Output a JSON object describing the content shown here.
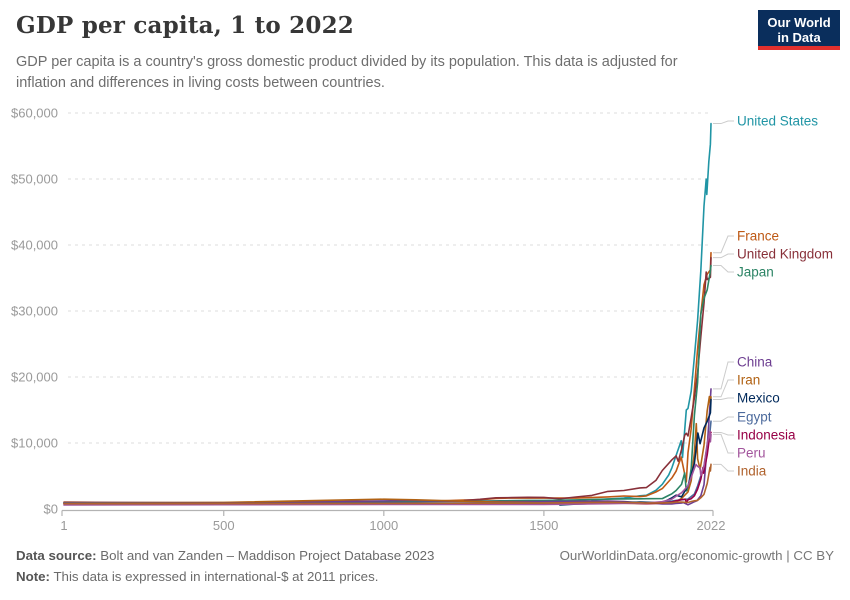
{
  "header": {
    "title": "GDP per capita, 1 to 2022",
    "subtitle": "GDP per capita is a country's gross domestic product divided by its population. This data is adjusted for inflation and differences in living costs between countries."
  },
  "logo": {
    "line1": "Our World",
    "line2": "in Data",
    "bg_color": "#0A2E5C",
    "accent_color": "#E2302D"
  },
  "footer": {
    "source_label": "Data source:",
    "source_text": " Bolt and van Zanden – Maddison Project Database 2023",
    "note_label": "Note:",
    "note_text": " This data is expressed in international-$ at 2011 prices.",
    "link_text": "OurWorldinData.org/economic-growth | CC BY"
  },
  "chart_data": {
    "type": "line",
    "title": "GDP per capita, 1 to 2022",
    "xlabel": "",
    "ylabel": "",
    "unit": "international-$ at 2011 prices",
    "xlim": [
      1,
      2022
    ],
    "ylim": [
      0,
      60000
    ],
    "x_ticks": [
      1,
      500,
      1000,
      1500,
      2022
    ],
    "x_tick_labels": [
      "1",
      "500",
      "1000",
      "1500",
      "2022"
    ],
    "y_ticks": [
      0,
      10000,
      20000,
      30000,
      40000,
      50000,
      60000
    ],
    "y_tick_labels": [
      "$0",
      "$10,000",
      "$20,000",
      "$30,000",
      "$40,000",
      "$50,000",
      "$60,000"
    ],
    "grid": "horizontal-dashed",
    "legend_position": "right-edge-labels",
    "axis_color": "#b3b3b3",
    "grid_color": "#dedede",
    "tick_label_color": "#9a9a9a",
    "connector_color": "#cccccc",
    "series": [
      {
        "name": "United States",
        "color": "#2095A5",
        "label_y": 121,
        "points": [
          [
            1650,
            1370
          ],
          [
            1700,
            1500
          ],
          [
            1750,
            1650
          ],
          [
            1800,
            2000
          ],
          [
            1820,
            2080
          ],
          [
            1850,
            2830
          ],
          [
            1870,
            3740
          ],
          [
            1890,
            5150
          ],
          [
            1900,
            6250
          ],
          [
            1913,
            8100
          ],
          [
            1929,
            10350
          ],
          [
            1933,
            7800
          ],
          [
            1945,
            15000
          ],
          [
            1950,
            15240
          ],
          [
            1960,
            17850
          ],
          [
            1970,
            23060
          ],
          [
            1980,
            28590
          ],
          [
            1990,
            36050
          ],
          [
            2000,
            45890
          ],
          [
            2007,
            49990
          ],
          [
            2009,
            47650
          ],
          [
            2015,
            52590
          ],
          [
            2020,
            55280
          ],
          [
            2022,
            58400
          ]
        ]
      },
      {
        "name": "France",
        "color": "#BE5915",
        "label_y": 236,
        "points": [
          [
            1,
            1050
          ],
          [
            500,
            900
          ],
          [
            1000,
            950
          ],
          [
            1250,
            1350
          ],
          [
            1300,
            1400
          ],
          [
            1350,
            1600
          ],
          [
            1400,
            1660
          ],
          [
            1500,
            1650
          ],
          [
            1600,
            1650
          ],
          [
            1700,
            1840
          ],
          [
            1750,
            1970
          ],
          [
            1800,
            1880
          ],
          [
            1820,
            1990
          ],
          [
            1850,
            2570
          ],
          [
            1870,
            3090
          ],
          [
            1900,
            4710
          ],
          [
            1913,
            5730
          ],
          [
            1929,
            7870
          ],
          [
            1945,
            4100
          ],
          [
            1950,
            8530
          ],
          [
            1960,
            12170
          ],
          [
            1970,
            18180
          ],
          [
            1980,
            24240
          ],
          [
            1990,
            29480
          ],
          [
            2000,
            33990
          ],
          [
            2010,
            35580
          ],
          [
            2020,
            36220
          ],
          [
            2022,
            38830
          ]
        ]
      },
      {
        "name": "United Kingdom",
        "color": "#883039",
        "label_y": 254,
        "points": [
          [
            1252,
            1310
          ],
          [
            1300,
            1470
          ],
          [
            1350,
            1700
          ],
          [
            1400,
            1720
          ],
          [
            1450,
            1780
          ],
          [
            1500,
            1760
          ],
          [
            1550,
            1550
          ],
          [
            1600,
            1820
          ],
          [
            1650,
            2060
          ],
          [
            1700,
            2670
          ],
          [
            1750,
            2810
          ],
          [
            1800,
            3200
          ],
          [
            1820,
            3240
          ],
          [
            1850,
            4330
          ],
          [
            1870,
            5830
          ],
          [
            1900,
            7450
          ],
          [
            1913,
            8050
          ],
          [
            1920,
            7220
          ],
          [
            1930,
            8980
          ],
          [
            1940,
            11170
          ],
          [
            1945,
            11470
          ],
          [
            1950,
            11061
          ],
          [
            1960,
            13870
          ],
          [
            1970,
            16840
          ],
          [
            1980,
            20610
          ],
          [
            1990,
            26070
          ],
          [
            2000,
            31200
          ],
          [
            2007,
            35910
          ],
          [
            2010,
            34750
          ],
          [
            2020,
            35120
          ],
          [
            2022,
            38080
          ]
        ]
      },
      {
        "name": "Japan",
        "color": "#2C8465",
        "label_y": 272,
        "points": [
          [
            730,
            1100
          ],
          [
            900,
            1050
          ],
          [
            1000,
            1090
          ],
          [
            1150,
            1130
          ],
          [
            1280,
            1180
          ],
          [
            1450,
            1300
          ],
          [
            1500,
            1300
          ],
          [
            1600,
            1380
          ],
          [
            1700,
            1500
          ],
          [
            1800,
            1550
          ],
          [
            1820,
            1560
          ],
          [
            1870,
            1580
          ],
          [
            1890,
            2060
          ],
          [
            1900,
            2300
          ],
          [
            1913,
            2810
          ],
          [
            1930,
            3720
          ],
          [
            1940,
            5460
          ],
          [
            1945,
            2750
          ],
          [
            1950,
            2950
          ],
          [
            1960,
            6150
          ],
          [
            1970,
            14200
          ],
          [
            1980,
            19170
          ],
          [
            1990,
            29550
          ],
          [
            2000,
            31930
          ],
          [
            2010,
            33210
          ],
          [
            2019,
            35680
          ],
          [
            2022,
            36900
          ]
        ]
      },
      {
        "name": "China",
        "color": "#6D3E91",
        "label_y": 362,
        "points": [
          [
            1,
            980
          ],
          [
            500,
            950
          ],
          [
            1000,
            1220
          ],
          [
            1090,
            1310
          ],
          [
            1120,
            1250
          ],
          [
            1300,
            1120
          ],
          [
            1400,
            1110
          ],
          [
            1500,
            1140
          ],
          [
            1600,
            1170
          ],
          [
            1700,
            1200
          ],
          [
            1750,
            1130
          ],
          [
            1820,
            880
          ],
          [
            1850,
            830
          ],
          [
            1870,
            780
          ],
          [
            1900,
            770
          ],
          [
            1912,
            850
          ],
          [
            1929,
            900
          ],
          [
            1936,
            970
          ],
          [
            1950,
            640
          ],
          [
            1960,
            870
          ],
          [
            1970,
            1110
          ],
          [
            1978,
            1260
          ],
          [
            1990,
            2000
          ],
          [
            2000,
            3700
          ],
          [
            2010,
            9380
          ],
          [
            2019,
            15780
          ],
          [
            2022,
            18200
          ]
        ]
      },
      {
        "name": "Iran",
        "color": "#B16214",
        "label_y": 380,
        "points": [
          [
            1,
            930
          ],
          [
            500,
            1000
          ],
          [
            1000,
            1480
          ],
          [
            1100,
            1400
          ],
          [
            1300,
            1100
          ],
          [
            1500,
            920
          ],
          [
            1700,
            940
          ],
          [
            1820,
            800
          ],
          [
            1870,
            900
          ],
          [
            1900,
            1000
          ],
          [
            1913,
            1100
          ],
          [
            1930,
            1600
          ],
          [
            1950,
            2590
          ],
          [
            1960,
            4270
          ],
          [
            1970,
            8500
          ],
          [
            1976,
            12930
          ],
          [
            1980,
            7610
          ],
          [
            1988,
            5990
          ],
          [
            2000,
            9660
          ],
          [
            2010,
            14890
          ],
          [
            2017,
            17050
          ],
          [
            2020,
            15820
          ],
          [
            2022,
            17000
          ]
        ]
      },
      {
        "name": "Mexico",
        "color": "#00295B",
        "label_y": 398,
        "points": [
          [
            1550,
            600
          ],
          [
            1600,
            750
          ],
          [
            1700,
            900
          ],
          [
            1800,
            1050
          ],
          [
            1820,
            1010
          ],
          [
            1870,
            950
          ],
          [
            1900,
            1690
          ],
          [
            1913,
            2090
          ],
          [
            1930,
            1830
          ],
          [
            1950,
            3500
          ],
          [
            1970,
            6920
          ],
          [
            1981,
            11500
          ],
          [
            1988,
            9900
          ],
          [
            2000,
            12280
          ],
          [
            2010,
            13280
          ],
          [
            2020,
            14560
          ],
          [
            2022,
            16600
          ]
        ]
      },
      {
        "name": "Egypt",
        "color": "#4C6A9C",
        "label_y": 417,
        "points": [
          [
            1,
            900
          ],
          [
            500,
            880
          ],
          [
            700,
            900
          ],
          [
            1000,
            920
          ],
          [
            1500,
            900
          ],
          [
            1600,
            890
          ],
          [
            1700,
            900
          ],
          [
            1800,
            880
          ],
          [
            1820,
            870
          ],
          [
            1870,
            1000
          ],
          [
            1900,
            1200
          ],
          [
            1913,
            1300
          ],
          [
            1950,
            1520
          ],
          [
            1960,
            1890
          ],
          [
            1970,
            2270
          ],
          [
            1980,
            3480
          ],
          [
            1990,
            5000
          ],
          [
            2000,
            6510
          ],
          [
            2010,
            9580
          ],
          [
            2019,
            11760
          ],
          [
            2022,
            13300
          ]
        ]
      },
      {
        "name": "Indonesia",
        "color": "#970046",
        "label_y": 435,
        "points": [
          [
            1,
            800
          ],
          [
            500,
            820
          ],
          [
            1000,
            850
          ],
          [
            1500,
            850
          ],
          [
            1600,
            870
          ],
          [
            1700,
            900
          ],
          [
            1800,
            850
          ],
          [
            1820,
            800
          ],
          [
            1870,
            900
          ],
          [
            1900,
            1040
          ],
          [
            1913,
            1240
          ],
          [
            1930,
            1410
          ],
          [
            1942,
            1490
          ],
          [
            1945,
            950
          ],
          [
            1950,
            1400
          ],
          [
            1960,
            1560
          ],
          [
            1970,
            2000
          ],
          [
            1980,
            3010
          ],
          [
            1990,
            4500
          ],
          [
            1997,
            6290
          ],
          [
            1999,
            5420
          ],
          [
            2010,
            8200
          ],
          [
            2019,
            11400
          ],
          [
            2022,
            11600
          ]
        ]
      },
      {
        "name": "Peru",
        "color": "#A2559C",
        "label_y": 453,
        "points": [
          [
            1,
            600
          ],
          [
            500,
            650
          ],
          [
            1000,
            700
          ],
          [
            1500,
            700
          ],
          [
            1600,
            750
          ],
          [
            1700,
            800
          ],
          [
            1820,
            900
          ],
          [
            1870,
            1100
          ],
          [
            1900,
            1500
          ],
          [
            1913,
            1940
          ],
          [
            1930,
            2450
          ],
          [
            1950,
            3500
          ],
          [
            1960,
            4820
          ],
          [
            1970,
            6150
          ],
          [
            1975,
            6740
          ],
          [
            1980,
            6470
          ],
          [
            1988,
            6230
          ],
          [
            1990,
            5100
          ],
          [
            2000,
            6450
          ],
          [
            2010,
            9900
          ],
          [
            2019,
            11770
          ],
          [
            2020,
            10180
          ],
          [
            2022,
            11300
          ]
        ]
      },
      {
        "name": "India",
        "color": "#B0632E",
        "label_y": 471,
        "points": [
          [
            1,
            800
          ],
          [
            500,
            820
          ],
          [
            1000,
            850
          ],
          [
            1500,
            900
          ],
          [
            1600,
            950
          ],
          [
            1700,
            1010
          ],
          [
            1800,
            950
          ],
          [
            1820,
            900
          ],
          [
            1870,
            930
          ],
          [
            1900,
            960
          ],
          [
            1913,
            1050
          ],
          [
            1930,
            1050
          ],
          [
            1950,
            987
          ],
          [
            1960,
            1130
          ],
          [
            1970,
            1240
          ],
          [
            1980,
            1300
          ],
          [
            1990,
            1700
          ],
          [
            2000,
            2230
          ],
          [
            2010,
            3870
          ],
          [
            2019,
            6310
          ],
          [
            2020,
            5760
          ],
          [
            2022,
            6770
          ]
        ]
      }
    ]
  }
}
